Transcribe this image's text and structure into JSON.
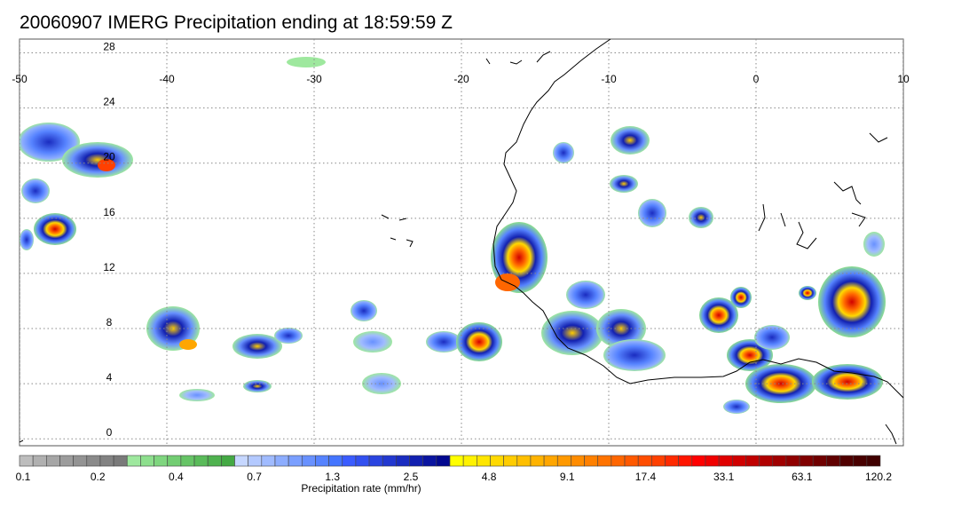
{
  "title": "20060907 IMERG Precipitation ending at 18:59:59 Z",
  "map": {
    "lon_labels": [
      "-50",
      "-40",
      "-30",
      "-20",
      "-10",
      "0",
      "10"
    ],
    "lat_labels": [
      "28",
      "24",
      "20",
      "16",
      "12",
      "8",
      "4",
      "0"
    ],
    "lon_range": [
      -50,
      10
    ],
    "lat_range": [
      -0.5,
      29
    ],
    "gridlines": "dotted",
    "coastline_color": "#000000"
  },
  "colorbar": {
    "label": "Precipitation rate (mm/hr)",
    "tick_labels": [
      "0.1",
      "0.2",
      "0.4",
      "0.7",
      "1.3",
      "2.5",
      "4.8",
      "9.1",
      "17.4",
      "33.1",
      "63.1",
      "120.2"
    ],
    "colors": [
      "#bdbdbd",
      "#b0b0b0",
      "#a6a6a6",
      "#9c9c9c",
      "#939393",
      "#8a8a8a",
      "#828282",
      "#7a7a7a",
      "#9ee89e",
      "#8ddf8d",
      "#7fd67f",
      "#72cd72",
      "#66c466",
      "#5abb5a",
      "#4fb24f",
      "#44a944",
      "#c6d7ff",
      "#b3c9ff",
      "#a0bbff",
      "#8dadff",
      "#7a9fff",
      "#6891ff",
      "#5683ff",
      "#4475ff",
      "#3a5cff",
      "#3250f0",
      "#2a44e0",
      "#2238d0",
      "#1a2cc0",
      "#1220b0",
      "#0a14a0",
      "#020890",
      "#ffff00",
      "#fff200",
      "#ffe600",
      "#ffd900",
      "#ffcc00",
      "#ffbf00",
      "#ffb300",
      "#ffa600",
      "#ff9900",
      "#ff8c00",
      "#ff8000",
      "#ff7300",
      "#ff6600",
      "#ff5900",
      "#ff4d00",
      "#ff4000",
      "#ff2a00",
      "#ff1500",
      "#ff0000",
      "#f00000",
      "#e00000",
      "#d00000",
      "#c00000",
      "#b00000",
      "#a00000",
      "#900000",
      "#800000",
      "#700000",
      "#600000",
      "#500000",
      "#480000",
      "#400000"
    ]
  }
}
